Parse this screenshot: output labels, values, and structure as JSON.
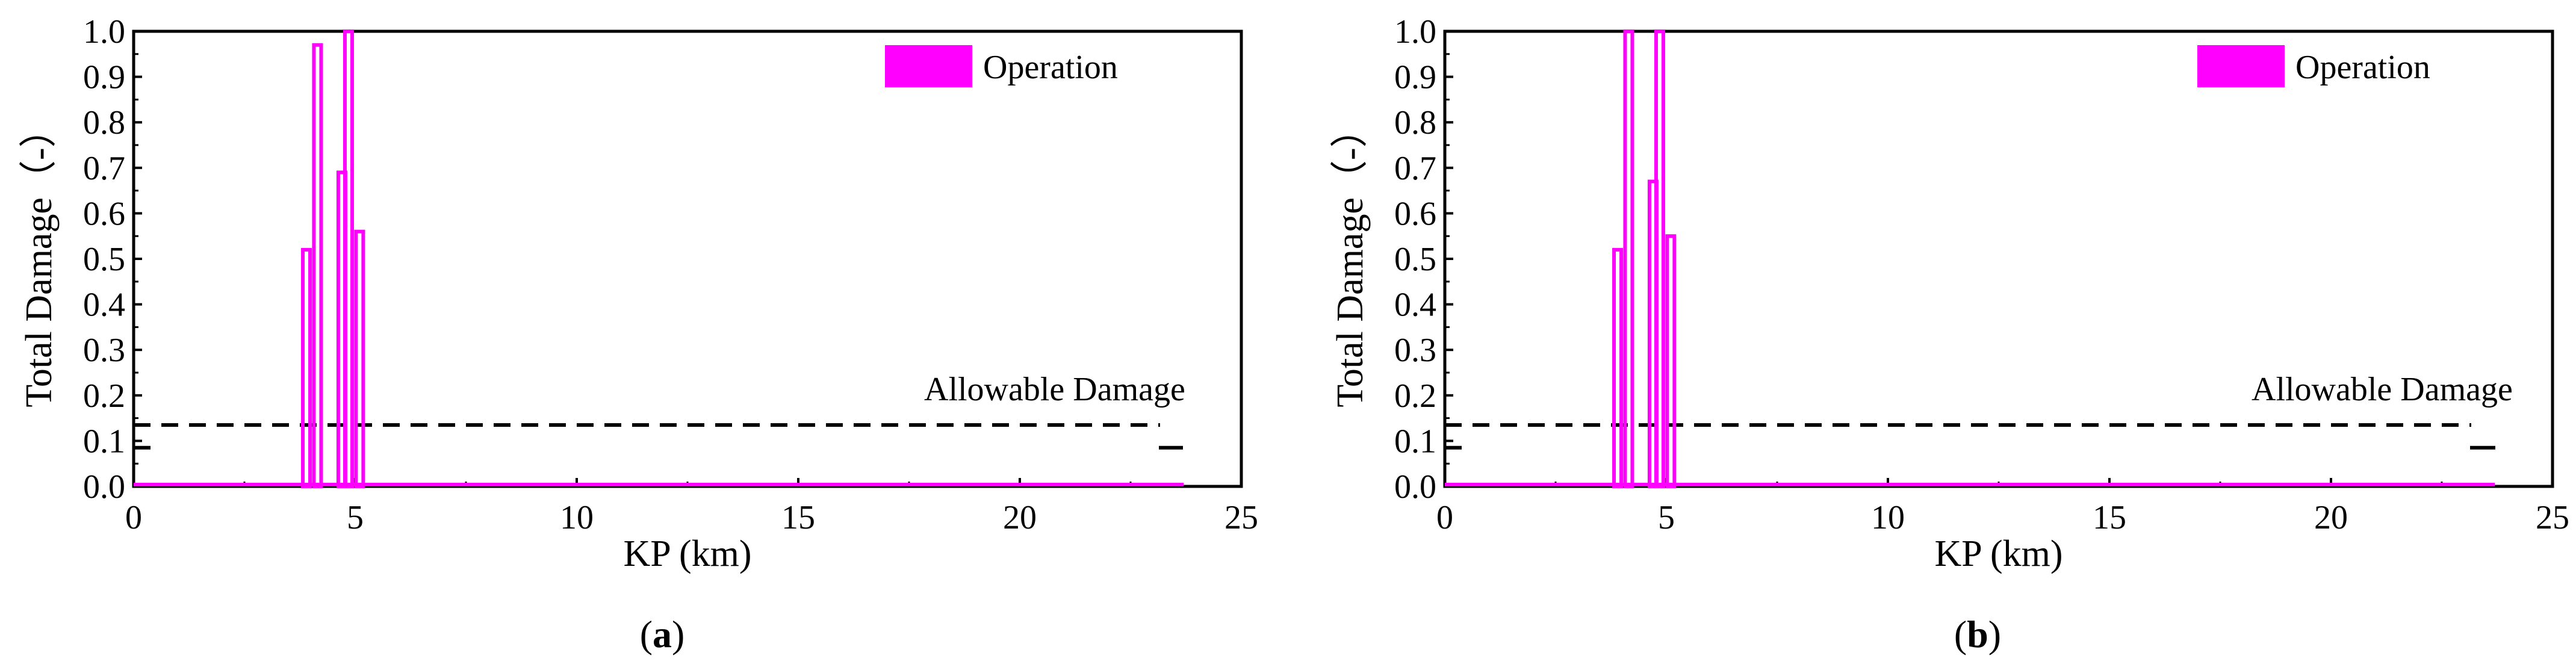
{
  "colors": {
    "series": "#ff00ff",
    "axis": "#000000",
    "threshold": "#000000",
    "background": "#ffffff"
  },
  "chart_data": [
    {
      "type": "bar",
      "panel_label_open": "(",
      "panel_label_letter": "a",
      "panel_label_close": ")",
      "xlabel": "KP (km)",
      "ylabel": "Total Damage（-）",
      "xlim": [
        0,
        25
      ],
      "ylim": [
        0,
        1.0
      ],
      "xticks": [
        "0",
        "5",
        "10",
        "15",
        "20",
        "25"
      ],
      "yticks": [
        "0.0",
        "0.1",
        "0.2",
        "0.3",
        "0.4",
        "0.5",
        "0.6",
        "0.7",
        "0.8",
        "0.9",
        "1.0"
      ],
      "legend": {
        "label": "Operation",
        "position": "top-right"
      },
      "annotation": {
        "text": "Allowable Damage",
        "threshold": 0.135
      },
      "series": [
        {
          "name": "Operation",
          "baseline_range": [
            0,
            23.7
          ],
          "spikes": [
            {
              "x": 3.9,
              "value": 0.52
            },
            {
              "x": 4.15,
              "value": 0.97
            },
            {
              "x": 4.7,
              "value": 0.69
            },
            {
              "x": 4.85,
              "value": 1.0
            },
            {
              "x": 5.1,
              "value": 0.56
            }
          ]
        }
      ]
    },
    {
      "type": "bar",
      "panel_label_open": "(",
      "panel_label_letter": "b",
      "panel_label_close": ")",
      "xlabel": "KP (km)",
      "ylabel": "Total Damage（-）",
      "xlim": [
        0,
        25
      ],
      "ylim": [
        0,
        1.0
      ],
      "xticks": [
        "0",
        "5",
        "10",
        "15",
        "20",
        "25"
      ],
      "yticks": [
        "0.0",
        "0.1",
        "0.2",
        "0.3",
        "0.4",
        "0.5",
        "0.6",
        "0.7",
        "0.8",
        "0.9",
        "1.0"
      ],
      "legend": {
        "label": "Operation",
        "position": "top-right"
      },
      "annotation": {
        "text": "Allowable Damage",
        "threshold": 0.135
      },
      "series": [
        {
          "name": "Operation",
          "baseline_range": [
            0,
            23.7
          ],
          "spikes": [
            {
              "x": 3.9,
              "value": 0.52
            },
            {
              "x": 4.15,
              "value": 1.0
            },
            {
              "x": 4.7,
              "value": 0.67
            },
            {
              "x": 4.85,
              "value": 1.0
            },
            {
              "x": 5.1,
              "value": 0.55
            }
          ]
        }
      ]
    }
  ]
}
